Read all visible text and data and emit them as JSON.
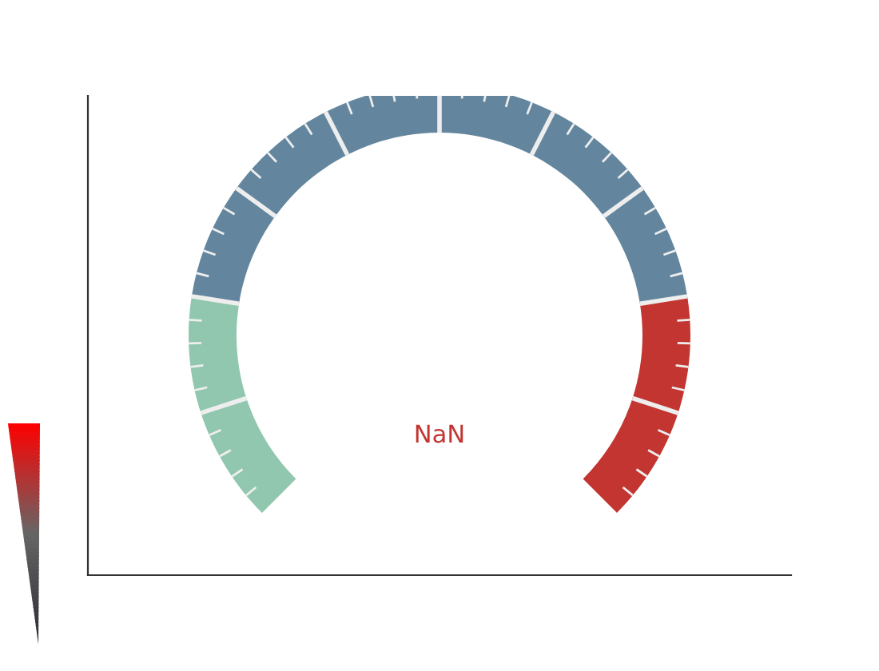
{
  "chart_data": {
    "type": "donut",
    "categories": [
      null,
      null,
      null
    ],
    "values": [
      20,
      60,
      20
    ],
    "colors": [
      "#91c7ae",
      "#63869e",
      "#c23531"
    ],
    "annotations": [
      "NaN"
    ]
  }
}
